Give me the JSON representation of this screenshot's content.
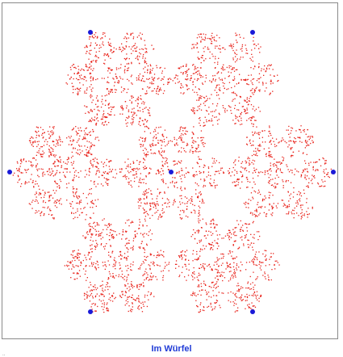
{
  "caption": {
    "label": "Im Würfel"
  },
  "footer_mark": "..",
  "fractal": {
    "description_colors": {
      "points": "#e8241c",
      "vertices": "#1a1ad8",
      "border": "#8a8a8a",
      "caption": "#1f3bd6"
    },
    "vertex_count": 7,
    "depth": 5,
    "ratio": 0.3333
  }
}
